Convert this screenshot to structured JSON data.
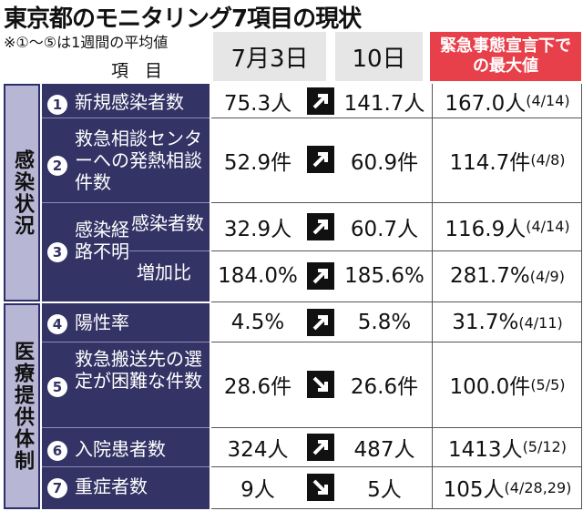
{
  "title": "東京都のモニタリング7項目の現状",
  "note": "※①～⑤は1週間の平均値",
  "headers": {
    "item": "項 目",
    "col1": "7月3日",
    "col2": "10日",
    "col3": "緊急事態宣言下での最大値"
  },
  "groups": {
    "infection": "感染状況",
    "medical": "医療提供体制"
  },
  "sub_group_3": "感染経路不明",
  "rows": [
    {
      "num": "1",
      "label": "新規感染者数",
      "v1": "75.3人",
      "v2": "141.7人",
      "trend": "up",
      "max": "167.0人",
      "max_date": "(4/14)"
    },
    {
      "num": "2",
      "label": "救急相談センターへの発熱相談件数",
      "v1": "52.9件",
      "v2": "60.9件",
      "trend": "up",
      "max": "114.7件",
      "max_date": "(4/8)"
    },
    {
      "num": "3",
      "label": "感染者数",
      "v1": "32.9人",
      "v2": "60.7人",
      "trend": "up",
      "max": "116.9人",
      "max_date": "(4/14)"
    },
    {
      "num": "",
      "label": "増加比",
      "v1": "184.0%",
      "v2": "185.6%",
      "trend": "up",
      "max": "281.7%",
      "max_date": "(4/9)"
    },
    {
      "num": "4",
      "label": "陽性率",
      "v1": "4.5%",
      "v2": "5.8%",
      "trend": "up",
      "max": "31.7%",
      "max_date": "(4/11)"
    },
    {
      "num": "5",
      "label": "救急搬送先の選定が困難な件数",
      "v1": "28.6件",
      "v2": "26.6件",
      "trend": "down",
      "max": "100.0件",
      "max_date": "(5/5)"
    },
    {
      "num": "6",
      "label": "入院患者数",
      "v1": "324人",
      "v2": "487人",
      "trend": "up",
      "max": "1413人",
      "max_date": "(5/12)"
    },
    {
      "num": "7",
      "label": "重症者数",
      "v1": "9人",
      "v2": "5人",
      "trend": "down",
      "max": "105人",
      "max_date": "(4/28,29)"
    }
  ]
}
